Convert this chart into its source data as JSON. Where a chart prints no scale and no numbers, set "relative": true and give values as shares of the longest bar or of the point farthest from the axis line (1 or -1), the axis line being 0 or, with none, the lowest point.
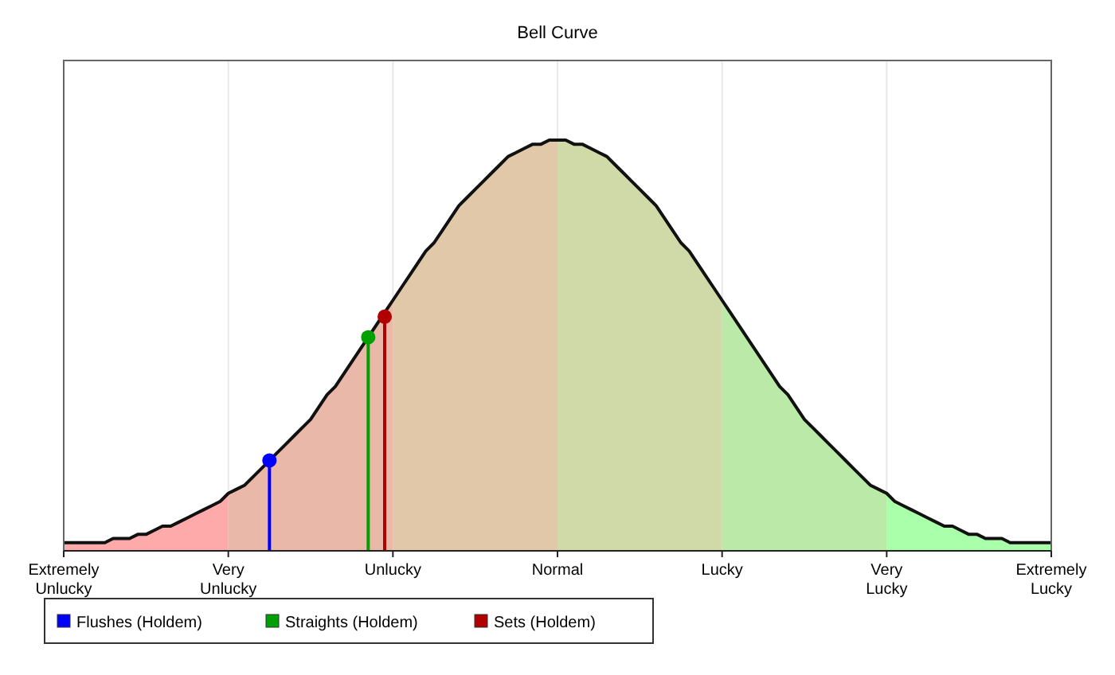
{
  "chart_data": {
    "type": "line",
    "title": "Bell Curve",
    "relative": true,
    "categories": [
      "Extremely Unlucky",
      null,
      null,
      null,
      null,
      null,
      null,
      null,
      null,
      null,
      null,
      null,
      null,
      null,
      null,
      null,
      null,
      null,
      null,
      null,
      "Very Unlucky",
      null,
      null,
      null,
      null,
      null,
      null,
      null,
      null,
      null,
      null,
      null,
      null,
      null,
      null,
      null,
      null,
      null,
      null,
      null,
      "Unlucky",
      null,
      null,
      null,
      null,
      null,
      null,
      null,
      null,
      null,
      null,
      null,
      null,
      null,
      null,
      null,
      null,
      null,
      null,
      null,
      "Normal",
      null,
      null,
      null,
      null,
      null,
      null,
      null,
      null,
      null,
      null,
      null,
      null,
      null,
      null,
      null,
      null,
      null,
      null,
      null,
      "Lucky",
      null,
      null,
      null,
      null,
      null,
      null,
      null,
      null,
      null,
      null,
      null,
      null,
      null,
      null,
      null,
      null,
      null,
      null,
      null,
      "Very Lucky",
      null,
      null,
      null,
      null,
      null,
      null,
      null,
      null,
      null,
      null,
      null,
      null,
      null,
      null,
      null,
      null,
      null,
      null,
      null,
      "Extremely Lucky"
    ],
    "grid": "x",
    "legend": "bottom",
    "marker": "circle",
    "bands": [
      {
        "axis": "x",
        "from": "Extremely Unlucky",
        "to": "Very Unlucky",
        "color": "#ffaaaa"
      },
      {
        "axis": "x",
        "from": "Very Unlucky",
        "to": "Unlucky",
        "color": "#e9b8a8"
      },
      {
        "axis": "x",
        "from": "Unlucky",
        "to": "Normal",
        "color": "#e0c8a8"
      },
      {
        "axis": "x",
        "from": "Normal",
        "to": "Lucky",
        "color": "#d0d9a8"
      },
      {
        "axis": "x",
        "from": "Lucky",
        "to": "Very Lucky",
        "color": "#bbeaa8"
      },
      {
        "axis": "x",
        "from": "Very Lucky",
        "to": "Extremely Lucky",
        "color": "#aaffaa"
      }
    ],
    "series": [
      {
        "type": "line",
        "color": "#111111",
        "marker": "none",
        "values": [
          0.02,
          0.02,
          0.02,
          0.02,
          0.02,
          0.02,
          0.03,
          0.03,
          0.03,
          0.04,
          0.04,
          0.05,
          0.06,
          0.06,
          0.07,
          0.08,
          0.09,
          0.1,
          0.11,
          0.12,
          0.14,
          0.15,
          0.16,
          0.18,
          0.2,
          0.22,
          0.24,
          0.26,
          0.28,
          0.3,
          0.32,
          0.35,
          0.38,
          0.4,
          0.43,
          0.46,
          0.49,
          0.52,
          0.55,
          0.58,
          0.61,
          0.64,
          0.67,
          0.7,
          0.73,
          0.75,
          0.78,
          0.81,
          0.84,
          0.86,
          0.88,
          0.9,
          0.92,
          0.94,
          0.96,
          0.97,
          0.98,
          0.99,
          0.99,
          1,
          1,
          1,
          0.99,
          0.99,
          0.98,
          0.97,
          0.96,
          0.94,
          0.92,
          0.9,
          0.88,
          0.86,
          0.84,
          0.81,
          0.78,
          0.75,
          0.73,
          0.7,
          0.67,
          0.64,
          0.61,
          0.58,
          0.55,
          0.52,
          0.49,
          0.46,
          0.43,
          0.4,
          0.38,
          0.35,
          0.32,
          0.3,
          0.28,
          0.26,
          0.24,
          0.22,
          0.2,
          0.18,
          0.16,
          0.15,
          0.14,
          0.12,
          0.11,
          0.1,
          0.09,
          0.08,
          0.07,
          0.06,
          0.06,
          0.05,
          0.04,
          0.04,
          0.03,
          0.03,
          0.03,
          0.02,
          0.02,
          0.02,
          0.02,
          0.02,
          0.02
        ]
      },
      {
        "type": "lollipop",
        "name": "Flushes (Holdem)",
        "color": "#0000ff",
        "values": [
          null,
          null,
          null,
          null,
          null,
          null,
          null,
          null,
          null,
          null,
          null,
          null,
          null,
          null,
          null,
          null,
          null,
          null,
          null,
          null,
          null,
          null,
          null,
          null,
          null,
          0.22,
          null,
          null,
          null,
          null,
          null,
          null,
          null,
          null,
          null,
          null,
          null,
          null,
          null,
          null,
          null,
          null,
          null,
          null,
          null,
          null,
          null,
          null,
          null,
          null,
          null,
          null,
          null,
          null,
          null,
          null,
          null,
          null,
          null,
          null,
          null,
          null,
          null,
          null,
          null,
          null,
          null,
          null,
          null,
          null,
          null,
          null,
          null,
          null,
          null,
          null,
          null,
          null,
          null,
          null,
          null,
          null,
          null,
          null,
          null,
          null,
          null,
          null,
          null,
          null,
          null,
          null,
          null,
          null,
          null,
          null,
          null,
          null,
          null,
          null,
          null,
          null,
          null,
          null,
          null,
          null,
          null,
          null,
          null,
          null,
          null,
          null,
          null,
          null,
          null,
          null,
          null,
          null,
          null,
          null,
          null
        ]
      },
      {
        "type": "lollipop",
        "name": "Straights (Holdem)",
        "color": "#00a000",
        "values": [
          null,
          null,
          null,
          null,
          null,
          null,
          null,
          null,
          null,
          null,
          null,
          null,
          null,
          null,
          null,
          null,
          null,
          null,
          null,
          null,
          null,
          null,
          null,
          null,
          null,
          null,
          null,
          null,
          null,
          null,
          null,
          null,
          null,
          null,
          null,
          null,
          null,
          0.52,
          null,
          null,
          null,
          null,
          null,
          null,
          null,
          null,
          null,
          null,
          null,
          null,
          null,
          null,
          null,
          null,
          null,
          null,
          null,
          null,
          null,
          null,
          null,
          null,
          null,
          null,
          null,
          null,
          null,
          null,
          null,
          null,
          null,
          null,
          null,
          null,
          null,
          null,
          null,
          null,
          null,
          null,
          null,
          null,
          null,
          null,
          null,
          null,
          null,
          null,
          null,
          null,
          null,
          null,
          null,
          null,
          null,
          null,
          null,
          null,
          null,
          null,
          null,
          null,
          null,
          null,
          null,
          null,
          null,
          null,
          null,
          null,
          null,
          null,
          null,
          null,
          null,
          null,
          null,
          null,
          null,
          null,
          null
        ]
      },
      {
        "type": "lollipop",
        "name": "Sets (Holdem)",
        "color": "#b00000",
        "values": [
          null,
          null,
          null,
          null,
          null,
          null,
          null,
          null,
          null,
          null,
          null,
          null,
          null,
          null,
          null,
          null,
          null,
          null,
          null,
          null,
          null,
          null,
          null,
          null,
          null,
          null,
          null,
          null,
          null,
          null,
          null,
          null,
          null,
          null,
          null,
          null,
          null,
          null,
          null,
          0.57,
          null,
          null,
          null,
          null,
          null,
          null,
          null,
          null,
          null,
          null,
          null,
          null,
          null,
          null,
          null,
          null,
          null,
          null,
          null,
          null,
          null,
          null,
          null,
          null,
          null,
          null,
          null,
          null,
          null,
          null,
          null,
          null,
          null,
          null,
          null,
          null,
          null,
          null,
          null,
          null,
          null,
          null,
          null,
          null,
          null,
          null,
          null,
          null,
          null,
          null,
          null,
          null,
          null,
          null,
          null,
          null,
          null,
          null,
          null,
          null,
          null,
          null,
          null,
          null,
          null,
          null,
          null,
          null,
          null,
          null,
          null,
          null,
          null,
          null,
          null,
          null,
          null,
          null,
          null,
          null,
          null
        ]
      }
    ]
  }
}
